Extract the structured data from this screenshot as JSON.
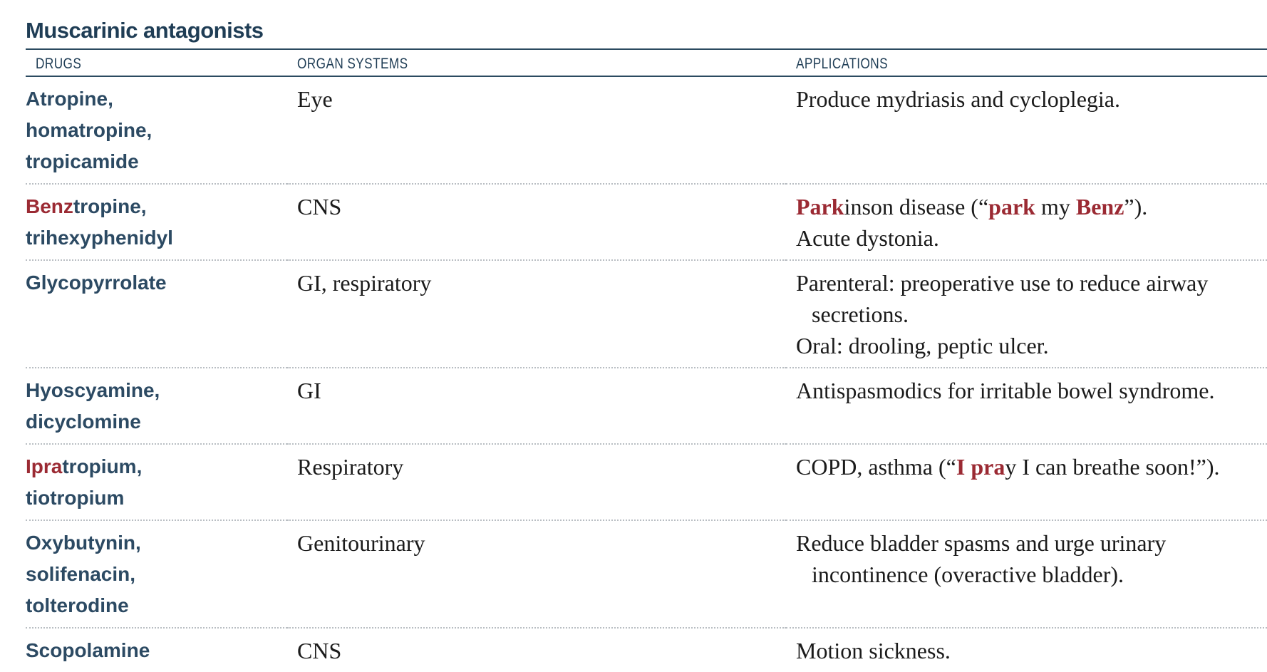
{
  "title": "Muscarinic antagonists",
  "columns": {
    "drugs": "DRUGS",
    "organ_systems": "ORGAN SYSTEMS",
    "applications": "APPLICATIONS"
  },
  "rows": [
    {
      "drug": [
        {
          "text": "Atropine,",
          "hl": ""
        },
        {
          "text": "homatropine,",
          "hl": ""
        },
        {
          "text": "tropicamide",
          "hl": ""
        }
      ],
      "system": "Eye",
      "applications": [
        [
          {
            "text": "Produce mydriasis and cycloplegia.",
            "hl": false
          }
        ]
      ]
    },
    {
      "drug": [
        {
          "text": "tropine,",
          "hl": "Benz"
        },
        {
          "text": "trihexyphenidyl",
          "hl": ""
        }
      ],
      "system": "CNS",
      "applications": [
        [
          {
            "text": "Park",
            "hl": true
          },
          {
            "text": "inson disease (“",
            "hl": false
          },
          {
            "text": "park",
            "hl": true
          },
          {
            "text": " my ",
            "hl": false
          },
          {
            "text": "Benz",
            "hl": true
          },
          {
            "text": "”).",
            "hl": false
          }
        ],
        [
          {
            "text": "Acute dystonia.",
            "hl": false
          }
        ]
      ]
    },
    {
      "drug": [
        {
          "text": "Glycopyrrolate",
          "hl": ""
        }
      ],
      "system": "GI, respiratory",
      "applications": [
        [
          {
            "text": "Parenteral: preoperative use to reduce airway secretions.",
            "hl": false
          }
        ],
        [
          {
            "text": "Oral: drooling, peptic ulcer.",
            "hl": false
          }
        ]
      ]
    },
    {
      "drug": [
        {
          "text": "Hyoscyamine,",
          "hl": ""
        },
        {
          "text": "dicyclomine",
          "hl": ""
        }
      ],
      "system": "GI",
      "applications": [
        [
          {
            "text": "Antispasmodics for irritable bowel syndrome.",
            "hl": false
          }
        ]
      ]
    },
    {
      "drug": [
        {
          "text": "tropium,",
          "hl": "Ipra"
        },
        {
          "text": "tiotropium",
          "hl": ""
        }
      ],
      "system": "Respiratory",
      "applications": [
        [
          {
            "text": "COPD, asthma (“",
            "hl": false
          },
          {
            "text": "I pra",
            "hl": true
          },
          {
            "text": "y I can breathe soon!”).",
            "hl": false
          }
        ]
      ]
    },
    {
      "drug": [
        {
          "text": "Oxybutynin,",
          "hl": ""
        },
        {
          "text": "solifenacin,",
          "hl": ""
        },
        {
          "text": "tolterodine",
          "hl": ""
        }
      ],
      "system": "Genitourinary",
      "applications": [
        [
          {
            "text": "Reduce bladder spasms and urge urinary incontinence (overactive bladder).",
            "hl": false
          }
        ]
      ]
    },
    {
      "drug": [
        {
          "text": "Scopolamine",
          "hl": ""
        }
      ],
      "system": "CNS",
      "applications": [
        [
          {
            "text": "Motion sickness.",
            "hl": false
          }
        ]
      ]
    }
  ]
}
